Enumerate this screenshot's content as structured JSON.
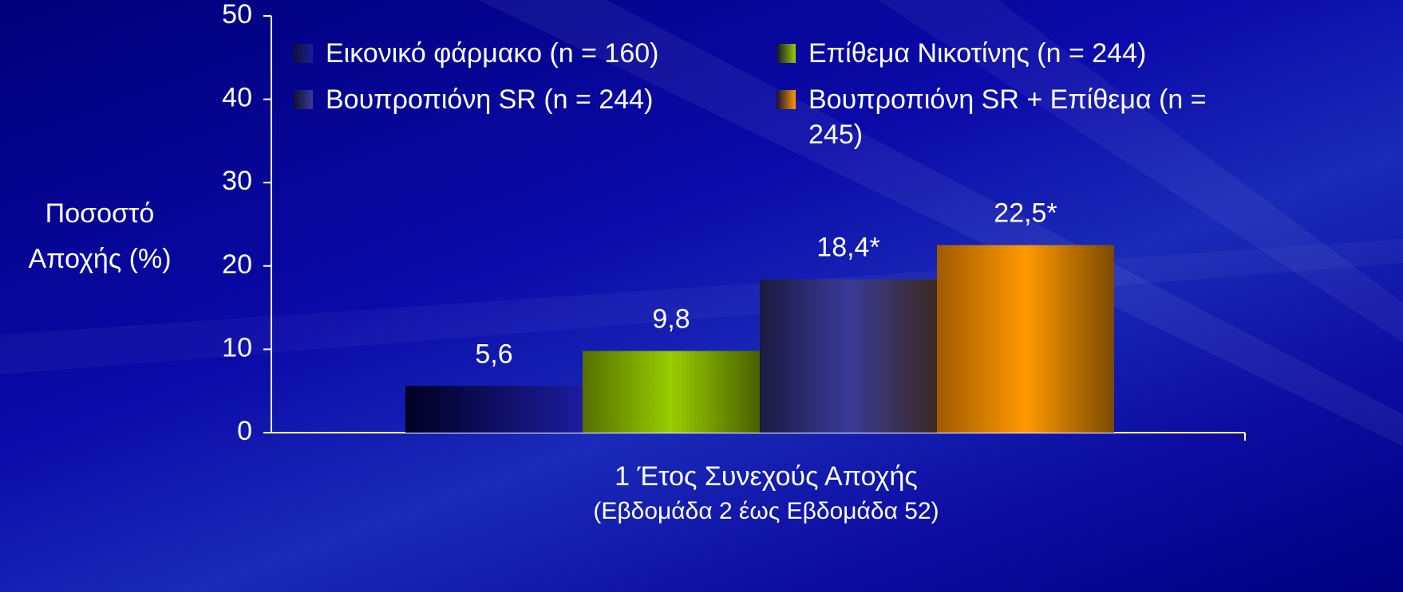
{
  "chart_data": {
    "type": "bar",
    "ylabel": "Ποσοστό Αποχής (%)",
    "categories": [
      "1 Έτος Συνεχούς Αποχής"
    ],
    "xlabel": "(Εβδομάδα 2 έως Εβδομάδα 52)",
    "series": [
      {
        "name": "Εικονικό φάρμακο (n = 160)",
        "color": "#1c1c9e",
        "values": [
          5.6
        ],
        "value_labels": [
          "5,6"
        ]
      },
      {
        "name": "Επίθεμα Νικοτίνης (n = 244)",
        "color": "#99cc00",
        "values": [
          9.8
        ],
        "value_labels": [
          "9,8"
        ]
      },
      {
        "name": "Βουπροπιόνη SR (n = 244)",
        "color": "#3a3a99",
        "values": [
          18.4
        ],
        "value_labels": [
          "18,4*"
        ]
      },
      {
        "name": "Βουπροπιόνη SR + Επίθεμα (n = 245)",
        "color": "#ff9900",
        "values": [
          22.5
        ],
        "value_labels": [
          "22,5*"
        ]
      }
    ],
    "ylim": [
      0,
      50
    ],
    "yticks": [
      0,
      10,
      20,
      30,
      40,
      50
    ],
    "legend": "top"
  }
}
